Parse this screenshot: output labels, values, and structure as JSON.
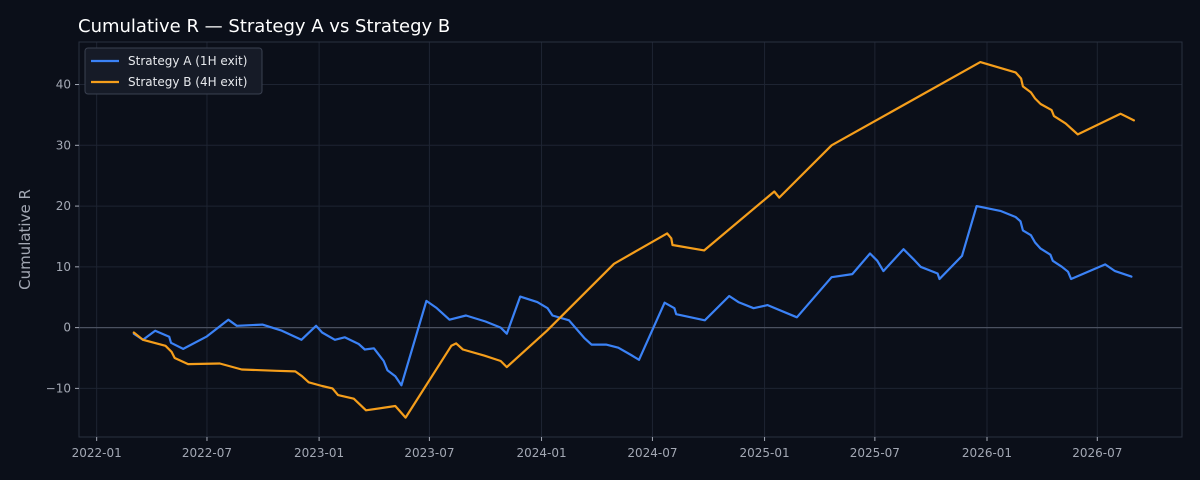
{
  "colors": {
    "background": "#0b0f19",
    "title": "#ffffff",
    "axis_text": "#a3a8b4",
    "grid": "#1e2432",
    "frame": "#2a3040",
    "zero_line": "#4b5160",
    "legend_bg": "#161b27",
    "legend_border": "#3a4050",
    "legend_text": "#e6e8ec"
  },
  "chart_data": {
    "type": "line",
    "title": "Cumulative R — Strategy A vs Strategy B",
    "xlabel": "",
    "ylabel": "Cumulative R",
    "xlim": [
      "2021-12-03",
      "2026-11-17"
    ],
    "ylim": [
      -18,
      47
    ],
    "x_ticks": [
      "2022-01-01",
      "2022-07-01",
      "2023-01-01",
      "2023-07-01",
      "2024-01-01",
      "2024-07-01",
      "2025-01-01",
      "2025-07-01",
      "2026-01-01",
      "2026-07-01"
    ],
    "x_tick_labels": [
      "2022-01",
      "2022-07",
      "2023-01",
      "2023-07",
      "2024-01",
      "2024-07",
      "2025-01",
      "2025-07",
      "2026-01",
      "2026-07"
    ],
    "y_ticks": [
      -10,
      0,
      10,
      20,
      30,
      40
    ],
    "y_tick_labels": [
      "−10",
      "0",
      "10",
      "20",
      "30",
      "40"
    ],
    "grid": true,
    "zero_line": true,
    "legend_position": "top-left",
    "series": [
      {
        "name": "Strategy A (1H exit)",
        "color": "#3b82f6",
        "points": [
          [
            "2022-03-03",
            -1
          ],
          [
            "2022-03-18",
            -2
          ],
          [
            "2022-04-07",
            -0.5
          ],
          [
            "2022-04-30",
            -1.5
          ],
          [
            "2022-05-03",
            -2.5
          ],
          [
            "2022-05-23",
            -3.5
          ],
          [
            "2022-06-30",
            -1.5
          ],
          [
            "2022-08-05",
            1.3
          ],
          [
            "2022-08-19",
            0.3
          ],
          [
            "2022-09-30",
            0.5
          ],
          [
            "2022-11-01",
            -0.5
          ],
          [
            "2022-12-03",
            -2
          ],
          [
            "2022-12-27",
            0.3
          ],
          [
            "2023-01-06",
            -0.8
          ],
          [
            "2023-01-27",
            -2
          ],
          [
            "2023-02-12",
            -1.6
          ],
          [
            "2023-03-07",
            -2.7
          ],
          [
            "2023-03-17",
            -3.6
          ],
          [
            "2023-04-01",
            -3.4
          ],
          [
            "2023-04-17",
            -5.5
          ],
          [
            "2023-04-23",
            -7
          ],
          [
            "2023-05-06",
            -8
          ],
          [
            "2023-05-16",
            -9.5
          ],
          [
            "2023-06-26",
            4.4
          ],
          [
            "2023-07-12",
            3.3
          ],
          [
            "2023-08-03",
            1.3
          ],
          [
            "2023-08-30",
            2
          ],
          [
            "2023-10-01",
            1
          ],
          [
            "2023-10-26",
            0
          ],
          [
            "2023-11-05",
            -1
          ],
          [
            "2023-11-27",
            5.1
          ],
          [
            "2023-12-25",
            4.2
          ],
          [
            "2024-01-11",
            3.2
          ],
          [
            "2024-01-19",
            2
          ],
          [
            "2024-02-15",
            1.2
          ],
          [
            "2024-03-11",
            -1.7
          ],
          [
            "2024-03-23",
            -2.8
          ],
          [
            "2024-04-16",
            -2.8
          ],
          [
            "2024-05-06",
            -3.3
          ],
          [
            "2024-05-27",
            -4.5
          ],
          [
            "2024-06-09",
            -5.3
          ],
          [
            "2024-07-21",
            4.1
          ],
          [
            "2024-08-06",
            3.2
          ],
          [
            "2024-08-09",
            2.2
          ],
          [
            "2024-09-25",
            1.2
          ],
          [
            "2024-11-04",
            5.2
          ],
          [
            "2024-11-19",
            4.2
          ],
          [
            "2024-12-14",
            3.2
          ],
          [
            "2025-01-06",
            3.7
          ],
          [
            "2025-02-23",
            1.7
          ],
          [
            "2025-04-21",
            8.3
          ],
          [
            "2025-05-25",
            8.8
          ],
          [
            "2025-06-23",
            12.2
          ],
          [
            "2025-07-05",
            11
          ],
          [
            "2025-07-15",
            9.3
          ],
          [
            "2025-08-17",
            12.9
          ],
          [
            "2025-09-04",
            11.1
          ],
          [
            "2025-09-14",
            10
          ],
          [
            "2025-10-12",
            8.9
          ],
          [
            "2025-10-15",
            8
          ],
          [
            "2025-11-21",
            11.8
          ],
          [
            "2025-12-15",
            20
          ],
          [
            "2026-01-23",
            19.2
          ],
          [
            "2026-02-17",
            18.2
          ],
          [
            "2026-02-25",
            17.5
          ],
          [
            "2026-03-01",
            16
          ],
          [
            "2026-03-14",
            15.2
          ],
          [
            "2026-03-21",
            14
          ],
          [
            "2026-03-30",
            13
          ],
          [
            "2026-04-15",
            12
          ],
          [
            "2026-04-19",
            11
          ],
          [
            "2026-05-04",
            10
          ],
          [
            "2026-05-14",
            9.2
          ],
          [
            "2026-05-19",
            8
          ],
          [
            "2026-07-14",
            10.4
          ],
          [
            "2026-07-30",
            9.3
          ],
          [
            "2026-08-26",
            8.4
          ]
        ]
      },
      {
        "name": "Strategy B (4H exit)",
        "color": "#f59e1b",
        "points": [
          [
            "2022-03-03",
            -0.8
          ],
          [
            "2022-03-18",
            -2
          ],
          [
            "2022-04-24",
            -3
          ],
          [
            "2022-05-04",
            -4
          ],
          [
            "2022-05-09",
            -5
          ],
          [
            "2022-05-31",
            -6
          ],
          [
            "2022-07-22",
            -5.9
          ],
          [
            "2022-08-27",
            -6.9
          ],
          [
            "2022-10-23",
            -7.1
          ],
          [
            "2022-11-23",
            -7.2
          ],
          [
            "2022-12-04",
            -8
          ],
          [
            "2022-12-15",
            -9
          ],
          [
            "2023-01-06",
            -9.6
          ],
          [
            "2023-01-23",
            -10
          ],
          [
            "2023-02-01",
            -11.1
          ],
          [
            "2023-02-27",
            -11.7
          ],
          [
            "2023-03-19",
            -13.6
          ],
          [
            "2023-05-06",
            -12.9
          ],
          [
            "2023-05-23",
            -14.8
          ],
          [
            "2023-08-06",
            -3
          ],
          [
            "2023-08-14",
            -2.6
          ],
          [
            "2023-08-25",
            -3.6
          ],
          [
            "2023-09-29",
            -4.6
          ],
          [
            "2023-10-26",
            -5.5
          ],
          [
            "2023-11-05",
            -6.5
          ],
          [
            "2024-01-10",
            -0.5
          ],
          [
            "2024-04-29",
            10.5
          ],
          [
            "2024-07-25",
            15.5
          ],
          [
            "2024-08-01",
            14.7
          ],
          [
            "2024-08-03",
            13.6
          ],
          [
            "2024-09-24",
            12.7
          ],
          [
            "2025-01-17",
            22.4
          ],
          [
            "2025-01-25",
            21.4
          ],
          [
            "2025-04-21",
            30
          ],
          [
            "2025-12-21",
            43.7
          ],
          [
            "2026-02-17",
            42
          ],
          [
            "2026-02-26",
            41
          ],
          [
            "2026-03-01",
            39.7
          ],
          [
            "2026-03-14",
            38.7
          ],
          [
            "2026-03-21",
            37.7
          ],
          [
            "2026-03-30",
            36.8
          ],
          [
            "2026-04-17",
            35.8
          ],
          [
            "2026-04-21",
            34.8
          ],
          [
            "2026-05-10",
            33.6
          ],
          [
            "2026-05-21",
            32.6
          ],
          [
            "2026-05-30",
            31.8
          ],
          [
            "2026-08-08",
            35.2
          ],
          [
            "2026-08-30",
            34.1
          ]
        ]
      }
    ]
  }
}
